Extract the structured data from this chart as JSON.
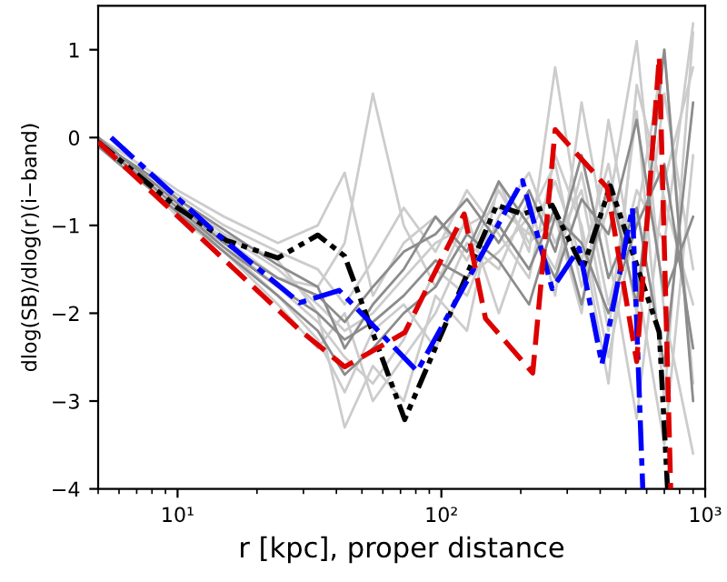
{
  "chart_data": {
    "type": "line",
    "xlabel": "r [kpc], proper distance",
    "ylabel": "dlog(SB)/dlog(r)(i−band)",
    "log": "x",
    "xlim": [
      5,
      1000
    ],
    "ylim": [
      -4,
      1.5
    ],
    "xticks": [
      {
        "value": 10,
        "label": "10¹"
      },
      {
        "value": 100,
        "label": "10²"
      },
      {
        "value": 1000,
        "label": "10³"
      }
    ],
    "yticks": [
      -4,
      -3,
      -2,
      -1,
      0,
      1
    ],
    "grid": false,
    "legend": false,
    "marker": "none",
    "x": [
      5,
      6,
      8,
      10,
      15,
      24,
      34,
      43,
      55,
      72,
      95,
      125,
      165,
      215,
      270,
      340,
      430,
      550,
      700,
      900
    ],
    "series": [
      {
        "color": "#cccccc",
        "line_style": "solid",
        "values": [
          0,
          -0.2,
          -0.5,
          -0.7,
          -1.1,
          -1.5,
          -1.9,
          -2.2,
          -2.0,
          -1.6,
          -1.2,
          -1.0,
          -0.8,
          -1.1,
          -0.5,
          -1.4,
          -0.3,
          -2.0,
          0.5,
          -1.5
        ]
      },
      {
        "color": "#cccccc",
        "line_style": "solid",
        "values": [
          -0.05,
          -0.25,
          -0.55,
          -0.8,
          -1.2,
          -1.7,
          -2.1,
          -2.5,
          -2.8,
          -2.3,
          -1.5,
          -1.8,
          -0.9,
          -0.4,
          -1.2,
          -0.6,
          -2.2,
          0.3,
          -3.0,
          1.2
        ]
      },
      {
        "color": "#cccccc",
        "line_style": "solid",
        "values": [
          0,
          -0.2,
          -0.45,
          -0.65,
          -1.0,
          -1.3,
          -1.5,
          -1.9,
          -1.4,
          -0.8,
          -1.3,
          -0.6,
          -1.1,
          -1.6,
          -0.2,
          -1.0,
          -2.5,
          -0.9,
          1.0,
          -2.8
        ]
      },
      {
        "color": "#cccccc",
        "line_style": "solid",
        "values": [
          -0.1,
          -0.3,
          -0.6,
          -0.9,
          -1.3,
          -1.9,
          -2.4,
          -2.0,
          -3.0,
          -2.5,
          -2.0,
          -1.2,
          -1.5,
          -0.7,
          -1.8,
          0.4,
          -1.3,
          -3.2,
          -0.5,
          0.8
        ]
      },
      {
        "color": "#cccccc",
        "line_style": "solid",
        "values": [
          0,
          -0.15,
          -0.4,
          -0.6,
          -0.9,
          -1.2,
          -1.0,
          -0.4,
          -1.8,
          -1.2,
          -0.9,
          -1.4,
          -0.6,
          -1.2,
          -0.9,
          -2.0,
          0.2,
          -1.6,
          -3.5,
          -0.2
        ]
      },
      {
        "color": "#cccccc",
        "line_style": "solid",
        "values": [
          -0.05,
          -0.3,
          -0.6,
          -0.85,
          -1.25,
          -1.8,
          -2.3,
          -2.9,
          -2.2,
          -1.9,
          -2.4,
          -1.6,
          -1.3,
          -0.9,
          -0.3,
          -1.7,
          -0.8,
          1.1,
          -2.0,
          -3.6
        ]
      },
      {
        "color": "#cccccc",
        "line_style": "solid",
        "values": [
          0,
          -0.2,
          -0.5,
          -0.75,
          -1.15,
          -1.6,
          -1.7,
          -1.2,
          0.5,
          -1.0,
          -1.7,
          -0.9,
          -2.0,
          -1.0,
          -1.5,
          -0.4,
          -1.9,
          -0.6,
          -1.2,
          1.3
        ]
      },
      {
        "color": "#cccccc",
        "line_style": "solid",
        "values": [
          -0.05,
          -0.25,
          -0.5,
          -0.7,
          -1.1,
          -1.4,
          -2.0,
          -3.3,
          -2.6,
          -3.0,
          -1.8,
          -2.2,
          -0.5,
          -1.3,
          0.8,
          -1.1,
          -2.8,
          0.6,
          -0.7,
          -1.9
        ]
      },
      {
        "color": "#8c8c8c",
        "line_style": "solid",
        "values": [
          0,
          -0.2,
          -0.5,
          -0.75,
          -1.2,
          -1.6,
          -1.8,
          -2.1,
          -1.7,
          -1.3,
          -1.1,
          -0.7,
          -1.2,
          -0.6,
          -1.3,
          -0.2,
          -1.6,
          -0.8,
          -2.6,
          0.4
        ]
      },
      {
        "color": "#8c8c8c",
        "line_style": "solid",
        "values": [
          -0.05,
          -0.25,
          -0.55,
          -0.8,
          -1.25,
          -1.7,
          -2.0,
          -2.3,
          -2.1,
          -1.8,
          -1.4,
          -1.6,
          -1.0,
          -1.5,
          -0.8,
          -1.9,
          -0.5,
          -1.9,
          1.0,
          -3.0
        ]
      },
      {
        "color": "#8c8c8c",
        "line_style": "solid",
        "values": [
          0,
          -0.2,
          -0.45,
          -0.7,
          -1.05,
          -1.45,
          -1.7,
          -2.4,
          -1.9,
          -1.5,
          -0.9,
          -1.3,
          -0.5,
          -1.0,
          -1.6,
          -0.7,
          -1.1,
          0.2,
          -1.8,
          -0.9
        ]
      },
      {
        "color": "#8c8c8c",
        "line_style": "solid",
        "values": [
          -0.1,
          -0.3,
          -0.6,
          -0.85,
          -1.3,
          -1.8,
          -2.2,
          -2.7,
          -2.4,
          -2.0,
          -1.7,
          -1.1,
          -1.4,
          -1.9,
          -0.9,
          -1.2,
          -2.0,
          -1.0,
          -0.3,
          -2.4
        ]
      },
      {
        "color": "#000000",
        "line_style": "dashdotdot",
        "x": [
          5,
          10,
          15.3,
          24,
          34,
          43,
          72.6,
          162,
          203,
          263,
          344,
          437,
          670,
          720
        ],
        "values": [
          -0.05,
          -0.8,
          -1.17,
          -1.37,
          -1.11,
          -1.35,
          -3.21,
          -0.77,
          -0.87,
          -0.77,
          -1.49,
          -0.55,
          -2.22,
          -4
        ]
      },
      {
        "color": "#0000ff",
        "line_style": "dashdot",
        "x": [
          5.6,
          15,
          29,
          41,
          81,
          203,
          263,
          333,
          406,
          530,
          580
        ],
        "values": [
          0,
          -1.17,
          -1.88,
          -1.74,
          -2.66,
          -0.49,
          -1.72,
          -1.26,
          -2.58,
          -0.8,
          -4
        ]
      },
      {
        "color": "#dd0000",
        "line_style": "dashed",
        "x": [
          5,
          29,
          43,
          72.6,
          122,
          147,
          222,
          270,
          425,
          550,
          670,
          740
        ],
        "values": [
          -0.05,
          -2.19,
          -2.61,
          -2.22,
          -0.87,
          -2.06,
          -2.68,
          0.09,
          -0.57,
          -2.55,
          0.92,
          -4
        ]
      }
    ]
  }
}
